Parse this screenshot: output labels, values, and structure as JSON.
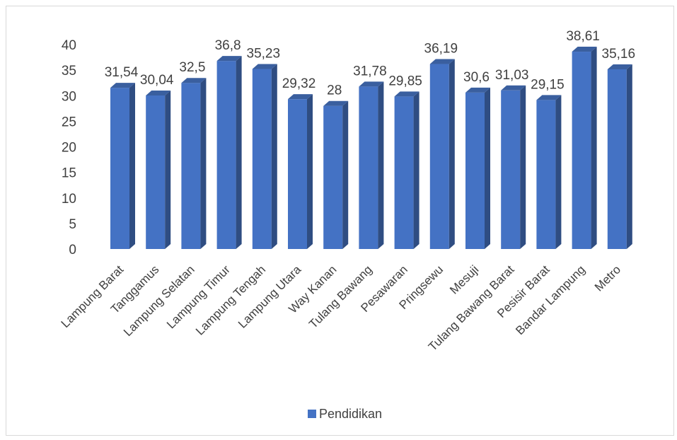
{
  "chart_data": {
    "type": "bar",
    "style": "3d-column",
    "categories": [
      "Lampung Barat",
      "Tanggamus",
      "Lampung Selatan",
      "Lampung Timur",
      "Lampung Tengah",
      "Lampung Utara",
      "Way Kanan",
      "Tulang Bawang",
      "Pesawaran",
      "Pringsewu",
      "Mesuji",
      "Tulang Bawang Barat",
      "Pesisir Barat",
      "Bandar Lampung",
      "Metro"
    ],
    "series": [
      {
        "name": "Pendidikan",
        "values": [
          31.54,
          30.04,
          32.5,
          36.8,
          35.23,
          29.32,
          28,
          31.78,
          29.85,
          36.19,
          30.6,
          31.03,
          29.15,
          38.61,
          35.16
        ],
        "labels": [
          "31,54",
          "30,04",
          "32,5",
          "36,8",
          "35,23",
          "29,32",
          "28",
          "31,78",
          "29,85",
          "36,19",
          "30,6",
          "31,03",
          "29,15",
          "38,61",
          "35,16"
        ],
        "color": "#4472c4"
      }
    ],
    "yticks": [
      "0",
      "5",
      "10",
      "15",
      "20",
      "25",
      "30",
      "35",
      "40"
    ],
    "ylim": [
      0,
      40
    ],
    "title": "",
    "xlabel": "",
    "ylabel": "",
    "grid": false,
    "legend_position": "bottom"
  }
}
